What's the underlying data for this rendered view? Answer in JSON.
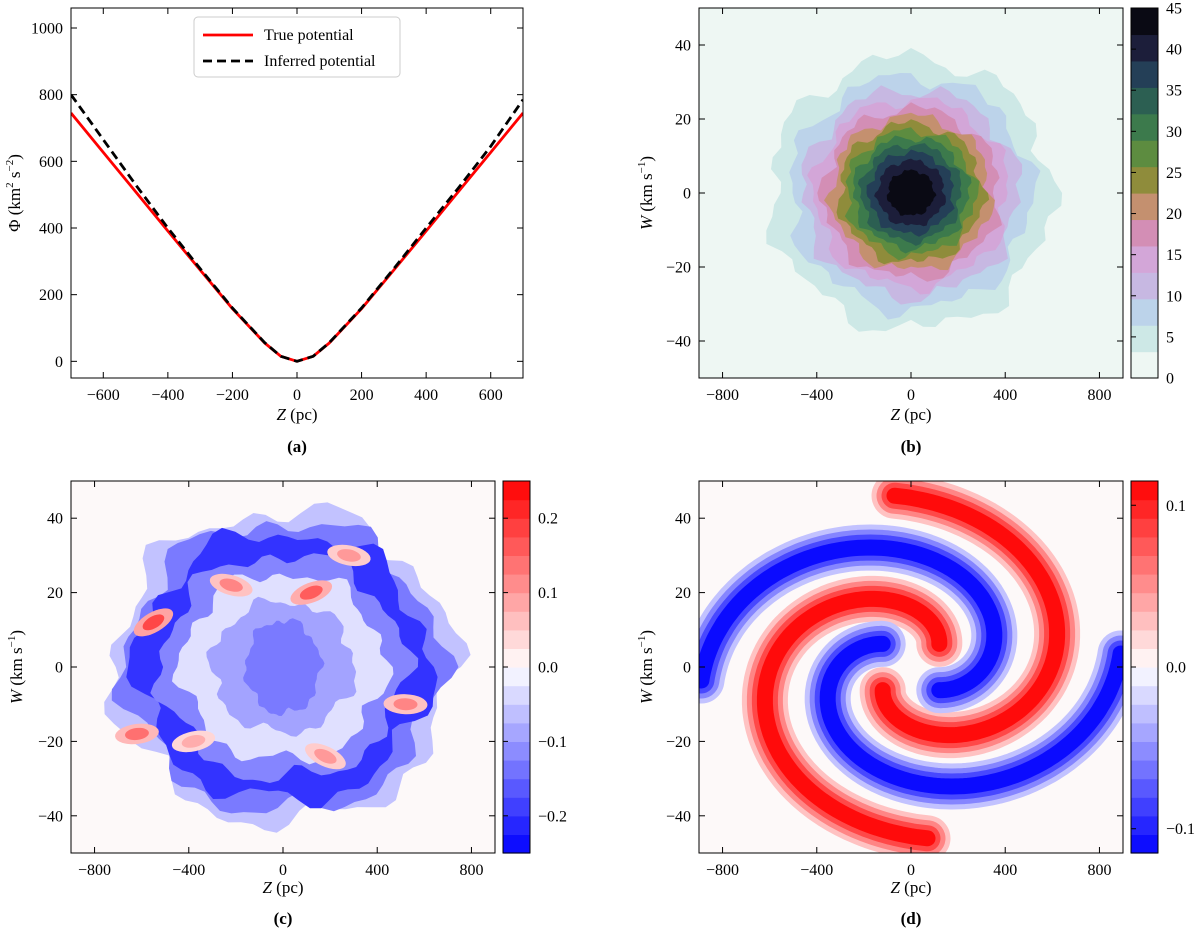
{
  "chart_data": [
    {
      "panel": "a",
      "type": "line",
      "caption": "(a)",
      "xlabel_var": "Z",
      "xlabel_unit": "(pc)",
      "ylabel_var": "Φ",
      "ylabel_unit": "(km",
      "ylabel_sup1": "2",
      "ylabel_mid": " s",
      "ylabel_sup2": "−2",
      "ylabel_end": ")",
      "xlim": [
        -700,
        700
      ],
      "ylim": [
        -50,
        1060
      ],
      "xticks": [
        -600,
        -400,
        -200,
        0,
        200,
        400,
        600
      ],
      "xtick_labels": [
        "−600",
        "−400",
        "−200",
        "0",
        "200",
        "400",
        "600"
      ],
      "yticks": [
        0,
        200,
        400,
        600,
        800,
        1000
      ],
      "ytick_labels": [
        "0",
        "200",
        "400",
        "600",
        "800",
        "1000"
      ],
      "legend_position": "top-center",
      "series": [
        {
          "name": "True potential",
          "color": "#ff0000",
          "style": "solid",
          "x": [
            -700,
            -600,
            -500,
            -400,
            -300,
            -200,
            -100,
            -50,
            0,
            50,
            100,
            200,
            300,
            400,
            500,
            600,
            700
          ],
          "y": [
            745,
            627,
            509,
            391,
            274,
            158,
            55,
            15,
            0,
            15,
            55,
            158,
            274,
            391,
            509,
            627,
            745
          ]
        },
        {
          "name": "Inferred potential",
          "color": "#000000",
          "style": "dashed",
          "x": [
            -700,
            -600,
            -500,
            -400,
            -300,
            -200,
            -100,
            -50,
            0,
            50,
            100,
            200,
            300,
            400,
            500,
            600,
            700
          ],
          "y": [
            800,
            665,
            530,
            400,
            278,
            160,
            56,
            15,
            0,
            15,
            56,
            160,
            278,
            400,
            520,
            645,
            785
          ]
        }
      ]
    },
    {
      "panel": "b",
      "type": "heatmap",
      "caption": "(b)",
      "xlabel_var": "Z",
      "xlabel_unit": "(pc)",
      "ylabel_var": "W",
      "ylabel_unit": "(km s",
      "ylabel_sup": "−1",
      "ylabel_end": ")",
      "xlim": [
        -900,
        900
      ],
      "ylim": [
        -50,
        50
      ],
      "xticks": [
        -800,
        -400,
        0,
        400,
        800
      ],
      "xtick_labels": [
        "−800",
        "−400",
        "0",
        "400",
        "800"
      ],
      "yticks": [
        -40,
        -20,
        0,
        20,
        40
      ],
      "ytick_labels": [
        "−40",
        "−20",
        "0",
        "20",
        "40"
      ],
      "description": "stellar number density in the (Z, W) plane, roughly Gaussian centred at origin",
      "peak": 45,
      "sigma_z_pc": 260,
      "sigma_w_kms": 16,
      "colorbar": {
        "min": 0,
        "max": 45,
        "ticks": [
          0,
          5,
          10,
          15,
          20,
          25,
          30,
          35,
          40,
          45
        ],
        "tick_labels": [
          "0",
          "5",
          "10",
          "15",
          "20",
          "25",
          "30",
          "35",
          "40",
          "45"
        ],
        "colors": [
          "#eef7f3",
          "#cde8e6",
          "#bcd3ea",
          "#c7b8e2",
          "#d3a6d8",
          "#d38eb5",
          "#c4906f",
          "#8f8c3b",
          "#5d8c40",
          "#3c7a4c",
          "#2c5f52",
          "#243f57",
          "#1c1e3a",
          "#0a0a14"
        ]
      }
    },
    {
      "panel": "c",
      "type": "heatmap",
      "caption": "(c)",
      "xlabel_var": "Z",
      "xlabel_unit": "(pc)",
      "ylabel_var": "W",
      "ylabel_unit": "(km s",
      "ylabel_sup": "−1",
      "ylabel_end": ")",
      "xlim": [
        -900,
        900
      ],
      "ylim": [
        -50,
        50
      ],
      "xticks": [
        -800,
        -400,
        0,
        400,
        800
      ],
      "xtick_labels": [
        "−800",
        "−400",
        "0",
        "400",
        "800"
      ],
      "yticks": [
        -40,
        -20,
        0,
        20,
        40
      ],
      "ytick_labels": [
        "−40",
        "−20",
        "0",
        "20",
        "40"
      ],
      "description": "residual map: negative (blue) ring near radius ~0.8 of the ellipse with scattered positive (red) patches inside",
      "colorbar": {
        "min": -0.25,
        "max": 0.25,
        "ticks": [
          -0.2,
          -0.1,
          0.0,
          0.1,
          0.2
        ],
        "tick_labels": [
          "−0.2",
          "−0.1",
          "0.0",
          "0.1",
          "0.2"
        ],
        "colormap": "bwr"
      },
      "positive_patches": [
        {
          "z": -550,
          "w": 12,
          "value": 0.18
        },
        {
          "z": -620,
          "w": -18,
          "value": 0.14
        },
        {
          "z": -220,
          "w": 22,
          "value": 0.12
        },
        {
          "z": 120,
          "w": 20,
          "value": 0.16
        },
        {
          "z": 520,
          "w": -10,
          "value": 0.12
        },
        {
          "z": 180,
          "w": -24,
          "value": 0.1
        },
        {
          "z": -380,
          "w": -20,
          "value": 0.08
        },
        {
          "z": 280,
          "w": 30,
          "value": 0.1
        }
      ]
    },
    {
      "panel": "d",
      "type": "heatmap",
      "caption": "(d)",
      "xlabel_var": "Z",
      "xlabel_unit": "(pc)",
      "ylabel_var": "W",
      "ylabel_unit": "(km s",
      "ylabel_sup": "−1",
      "ylabel_end": ")",
      "xlim": [
        -900,
        900
      ],
      "ylim": [
        -50,
        50
      ],
      "xticks": [
        -800,
        -400,
        0,
        400,
        800
      ],
      "xtick_labels": [
        "−800",
        "−400",
        "0",
        "400",
        "800"
      ],
      "yticks": [
        -40,
        -20,
        0,
        20,
        40
      ],
      "ytick_labels": [
        "−40",
        "−20",
        "0",
        "20",
        "40"
      ],
      "description": "model two-armed phase spiral with alternating red (positive) and blue (negative) arms",
      "colorbar": {
        "min": -0.115,
        "max": 0.115,
        "ticks": [
          -0.1,
          0.0,
          0.1
        ],
        "tick_labels": [
          "−0.1",
          "0.0",
          "0.1"
        ],
        "colormap": "bwr"
      },
      "spiral": {
        "arms": 2,
        "amplitude": 0.11,
        "inner_radius_norm": 0.2,
        "outer_radius_norm": 1.05,
        "turns_per_unit_radius": 0.75
      }
    }
  ]
}
